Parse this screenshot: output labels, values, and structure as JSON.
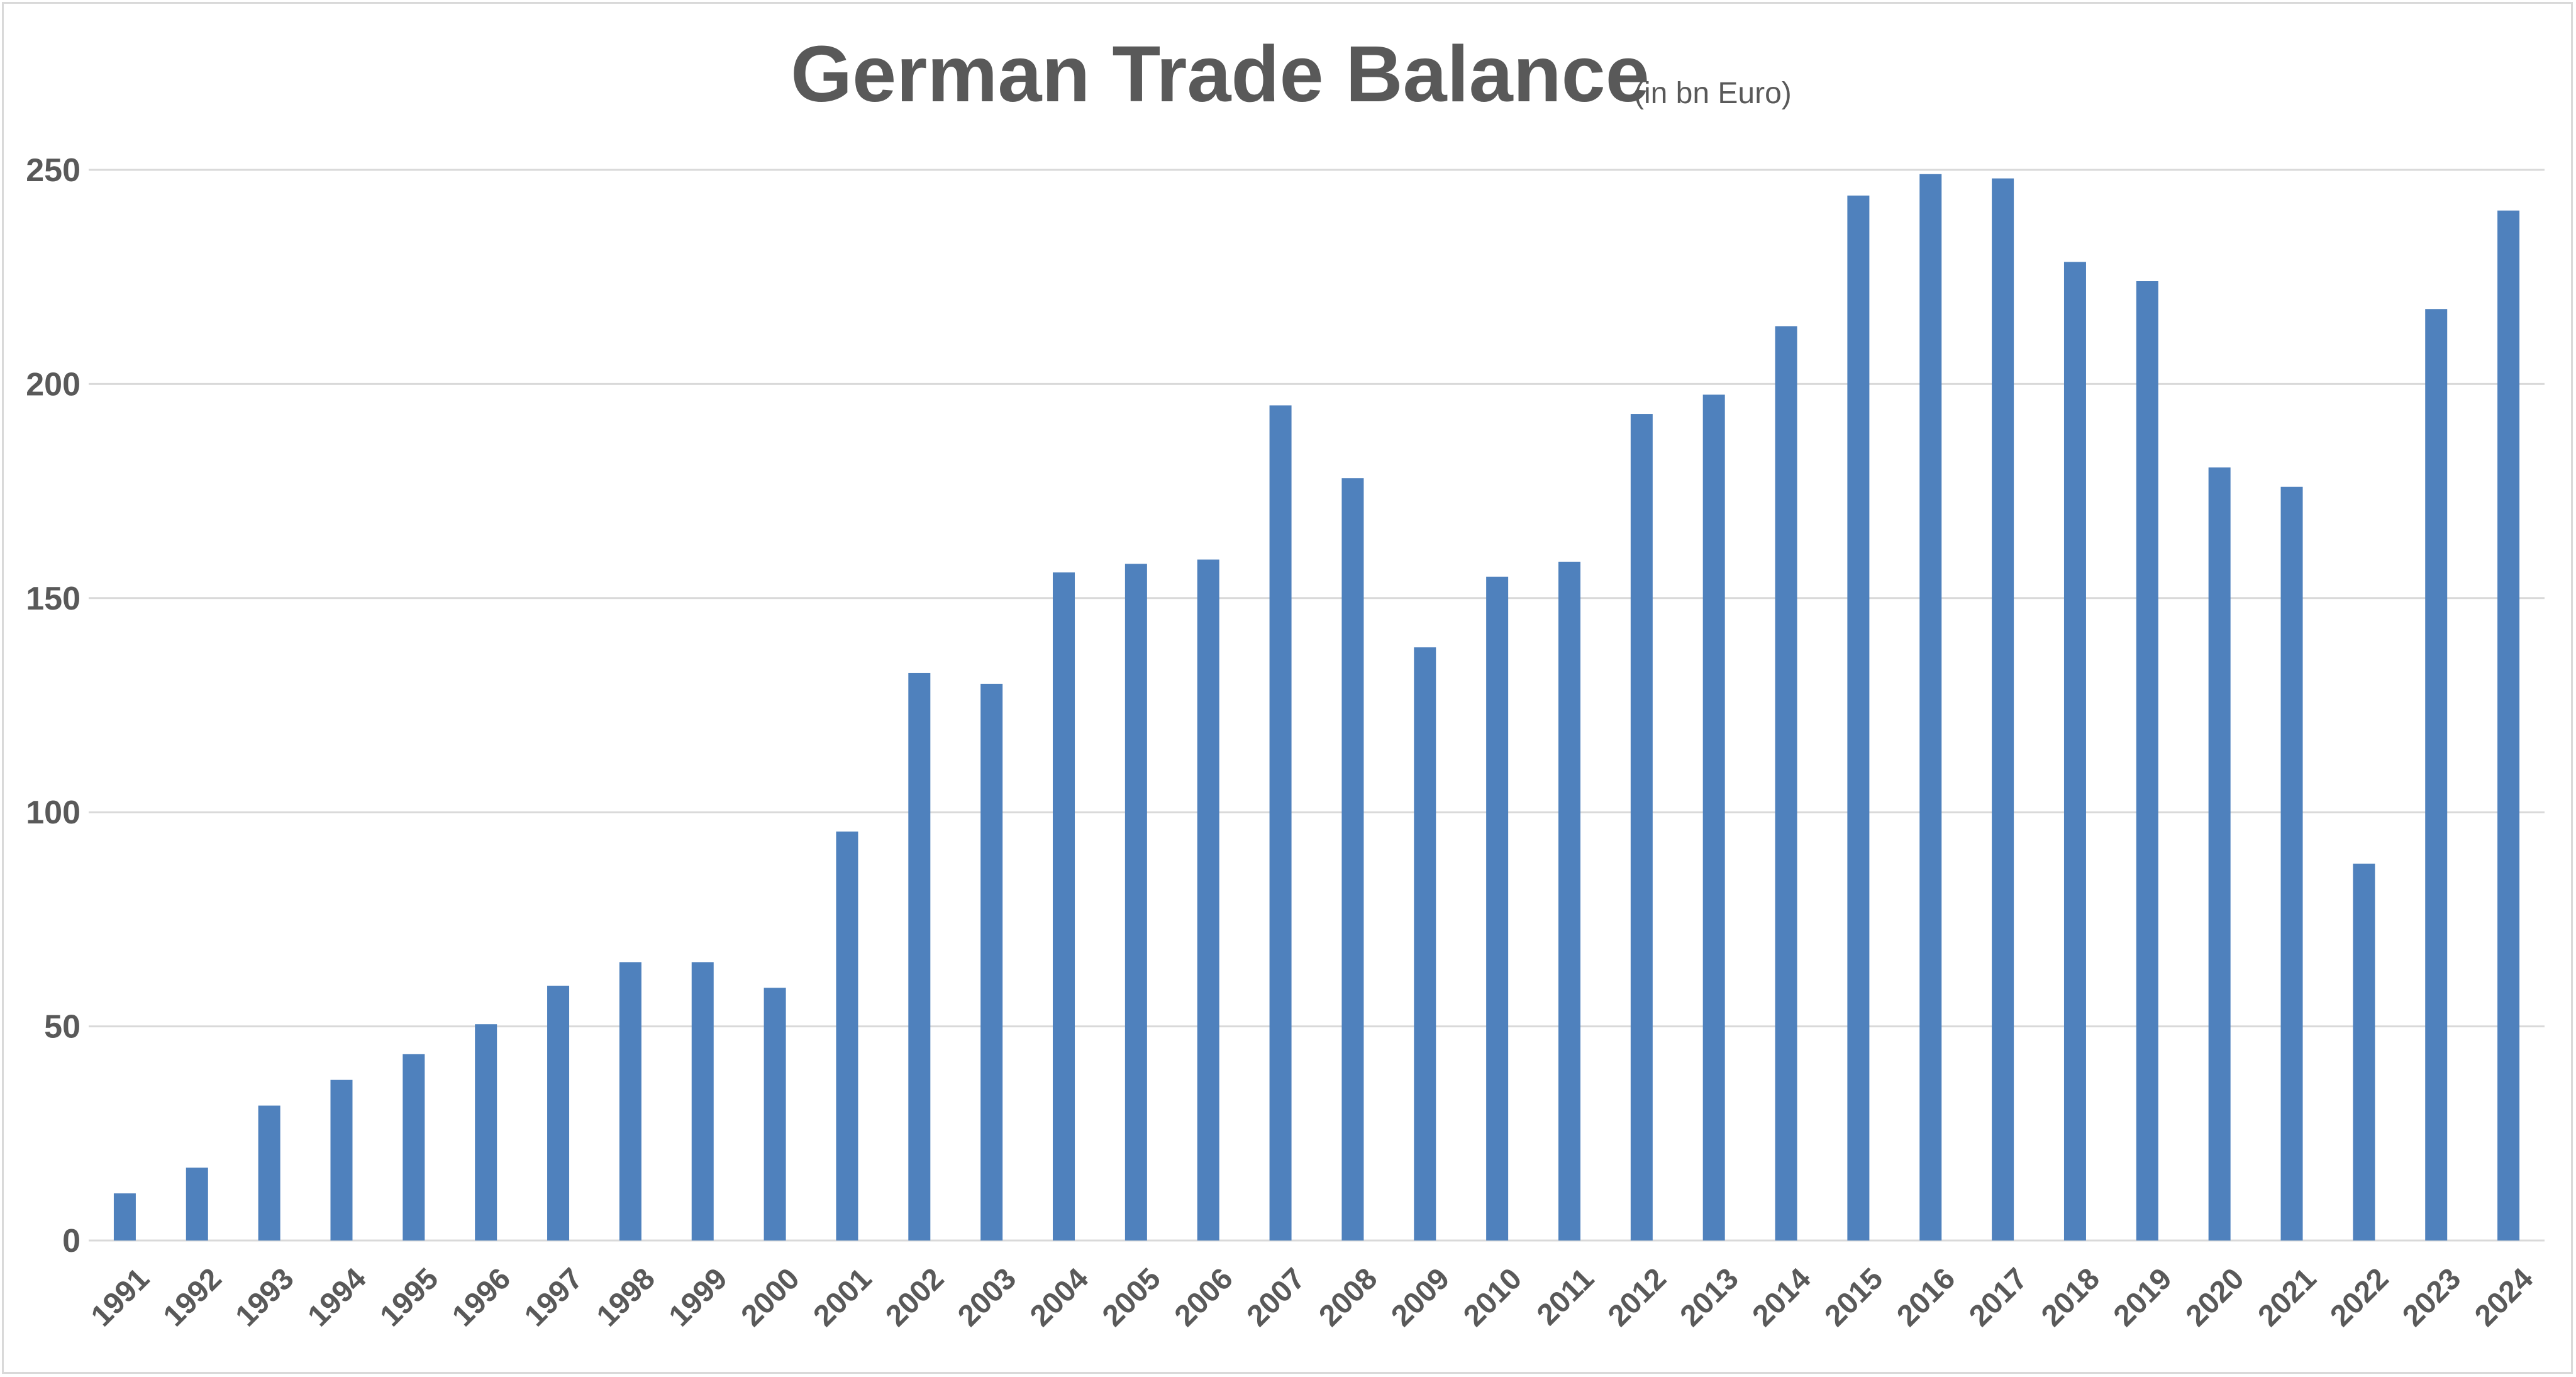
{
  "chart_data": {
    "type": "bar",
    "title": "German Trade Balance",
    "subtitle": "(in bn Euro)",
    "xlabel": "",
    "ylabel": "",
    "ylim": [
      0,
      250
    ],
    "y_ticks": [
      "0",
      "50",
      "100",
      "150",
      "200",
      "250"
    ],
    "grid": true,
    "legend": "none",
    "bar_color": "#4f81bd",
    "categories": [
      "1991",
      "1992",
      "1993",
      "1994",
      "1995",
      "1996",
      "1997",
      "1998",
      "1999",
      "2000",
      "2001",
      "2002",
      "2003",
      "2004",
      "2005",
      "2006",
      "2007",
      "2008",
      "2009",
      "2010",
      "2011",
      "2012",
      "2013",
      "2014",
      "2015",
      "2016",
      "2017",
      "2018",
      "2019",
      "2020",
      "2021",
      "2022",
      "2023",
      "2024"
    ],
    "values": [
      11,
      17,
      31.5,
      37.5,
      43.5,
      50.5,
      59.5,
      65,
      65,
      59,
      95.5,
      132.5,
      130,
      156,
      158,
      159,
      195,
      178,
      138.5,
      155,
      158.5,
      193,
      197.5,
      213.5,
      244,
      249,
      248,
      228.5,
      224,
      180.5,
      176,
      88,
      217.5,
      240.5
    ]
  }
}
